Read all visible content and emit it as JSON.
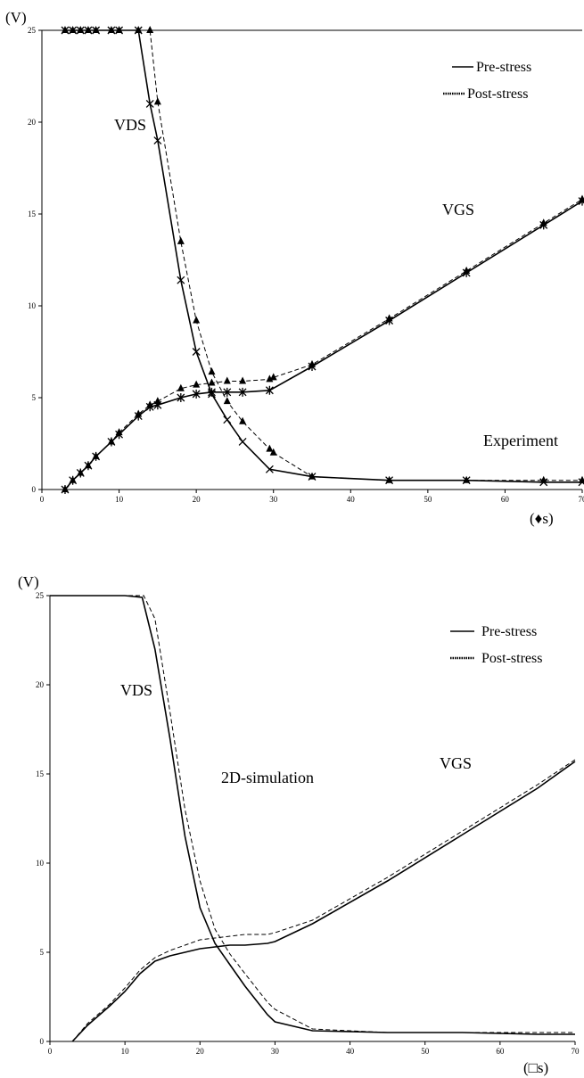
{
  "chart_data": [
    {
      "type": "line",
      "y_unit_label": "(V)",
      "x_unit_label": "(♦s)",
      "annotation": "Experiment",
      "curve_labels": {
        "vds": "VDS",
        "vgs": "VGS"
      },
      "legend": {
        "placement": "top-right",
        "entries": [
          "Pre-stress",
          "Post-stress"
        ]
      },
      "xlim": [
        0,
        70
      ],
      "ylim": [
        0,
        25
      ],
      "x_ticks": [
        0,
        10,
        20,
        30,
        40,
        50,
        60,
        70
      ],
      "y_ticks": [
        0,
        5,
        10,
        15,
        20,
        25
      ],
      "grid": false,
      "series": [
        {
          "name": "Pre-stress",
          "curve": "VDS",
          "style": "solid",
          "marker": "x",
          "x": [
            3,
            4,
            5,
            6,
            7,
            9,
            10,
            12.5,
            14,
            15,
            18,
            20,
            22,
            24,
            26,
            29.5,
            35,
            45,
            55,
            65,
            70
          ],
          "y": [
            25,
            25,
            25,
            25,
            25,
            25,
            25,
            25,
            21,
            19,
            11.4,
            7.5,
            5.2,
            3.8,
            2.6,
            1.1,
            0.7,
            0.5,
            0.5,
            0.4,
            0.4
          ]
        },
        {
          "name": "Post-stress",
          "curve": "VDS",
          "style": "dashed",
          "marker": "triangle",
          "x": [
            3,
            4,
            5,
            6,
            7,
            9,
            10,
            12.5,
            14,
            15,
            18,
            20,
            22,
            24,
            26,
            29.5,
            30,
            35,
            45,
            55,
            65,
            70
          ],
          "y": [
            25,
            25,
            25,
            25,
            25,
            25,
            25,
            25,
            25,
            21.1,
            13.5,
            9.2,
            6.4,
            4.8,
            3.7,
            2.2,
            2.0,
            0.7,
            0.5,
            0.5,
            0.5,
            0.5
          ]
        },
        {
          "name": "Pre-stress",
          "curve": "VGS",
          "style": "solid",
          "marker": "asterisk",
          "x": [
            3,
            4,
            5,
            6,
            7,
            9,
            10,
            12.5,
            14,
            15,
            18,
            20,
            22,
            24,
            26,
            29.5,
            35,
            45,
            55,
            65,
            70
          ],
          "y": [
            0,
            0.5,
            0.9,
            1.3,
            1.8,
            2.6,
            3.0,
            4.0,
            4.5,
            4.6,
            5.0,
            5.2,
            5.3,
            5.3,
            5.3,
            5.4,
            6.7,
            9.2,
            11.8,
            14.4,
            15.7
          ]
        },
        {
          "name": "Post-stress",
          "curve": "VGS",
          "style": "dashed",
          "marker": "triangle",
          "x": [
            3,
            4,
            5,
            6,
            7,
            9,
            10,
            12.5,
            14,
            15,
            18,
            20,
            22,
            24,
            26,
            29.5,
            30,
            35,
            45,
            55,
            65,
            70
          ],
          "y": [
            0,
            0.5,
            0.9,
            1.3,
            1.8,
            2.6,
            3.1,
            4.1,
            4.6,
            4.8,
            5.5,
            5.7,
            5.8,
            5.9,
            5.9,
            6.0,
            6.1,
            6.8,
            9.3,
            11.9,
            14.5,
            15.8
          ]
        }
      ]
    },
    {
      "type": "line",
      "y_unit_label": "(V)",
      "x_unit_label": "(□s)",
      "annotation": "2D-simulation",
      "curve_labels": {
        "vds": "VDS",
        "vgs": "VGS"
      },
      "legend": {
        "placement": "top-right",
        "entries": [
          "Pre-stress",
          "Post-stress"
        ]
      },
      "xlim": [
        0,
        70
      ],
      "ylim": [
        0,
        25
      ],
      "x_ticks": [
        0,
        10,
        20,
        30,
        40,
        50,
        60,
        70
      ],
      "y_ticks": [
        0,
        5,
        10,
        15,
        20,
        25
      ],
      "grid": false,
      "series": [
        {
          "name": "Pre-stress",
          "curve": "VDS",
          "style": "solid",
          "marker": "none",
          "x": [
            0,
            10,
            12.3,
            14,
            16,
            18,
            20,
            22,
            24,
            26,
            29,
            30,
            35,
            45,
            55,
            65,
            70
          ],
          "y": [
            25,
            25,
            24.9,
            22,
            17,
            11.5,
            7.5,
            5.5,
            4.3,
            3.1,
            1.5,
            1.1,
            0.6,
            0.5,
            0.5,
            0.4,
            0.4
          ]
        },
        {
          "name": "Post-stress",
          "curve": "VDS",
          "style": "dashed",
          "marker": "none",
          "x": [
            0,
            10,
            12.5,
            14,
            16,
            18,
            20,
            22,
            24,
            26,
            29,
            30,
            35,
            45,
            55,
            65,
            70
          ],
          "y": [
            25,
            25,
            25,
            23.7,
            18.5,
            13,
            9,
            6.3,
            4.9,
            3.8,
            2.2,
            1.8,
            0.7,
            0.5,
            0.5,
            0.5,
            0.5
          ]
        },
        {
          "name": "Pre-stress",
          "curve": "VGS",
          "style": "solid",
          "marker": "none",
          "x": [
            3,
            5,
            8,
            10,
            12,
            14,
            16,
            18,
            20,
            22,
            24,
            26,
            29,
            30,
            35,
            45,
            55,
            65,
            70
          ],
          "y": [
            0,
            0.9,
            2.0,
            2.8,
            3.8,
            4.5,
            4.8,
            5.0,
            5.2,
            5.3,
            5.4,
            5.4,
            5.5,
            5.6,
            6.6,
            9.0,
            11.6,
            14.2,
            15.7
          ]
        },
        {
          "name": "Post-stress",
          "curve": "VGS",
          "style": "dashed",
          "marker": "none",
          "x": [
            3,
            5,
            8,
            10,
            12,
            14,
            16,
            18,
            20,
            22,
            24,
            26,
            29,
            30,
            35,
            45,
            55,
            65,
            70
          ],
          "y": [
            0,
            1.0,
            2.1,
            3.0,
            4.0,
            4.7,
            5.1,
            5.4,
            5.7,
            5.8,
            5.9,
            6.0,
            6.0,
            6.1,
            6.8,
            9.2,
            11.8,
            14.4,
            15.8
          ]
        }
      ]
    }
  ]
}
